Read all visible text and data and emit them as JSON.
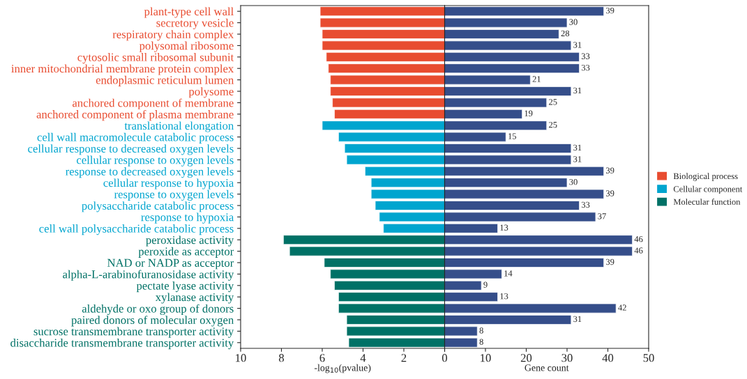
{
  "chart_data": [
    {
      "type": "bar",
      "orientation": "horizontal",
      "xlabel": "-log$_{10}$(pvalue)",
      "categories": [
        "plant-type cell wall",
        "secretory vesicle",
        "respiratory chain complex",
        "polysomal ribosome",
        "cytosolic small ribosomal subunit",
        "inner mitochondrial membrane protein complex",
        "endoplasmic reticulum lumen",
        "polysome",
        "anchored component of membrane",
        "anchored component of plasma membrane",
        "translational elongation",
        "cell wall macromolecule catabolic process",
        "cellular response to decreased oxygen levels",
        "cellular response to oxygen levels",
        "response to decreased oxygen levels",
        "cellular response to hypoxia",
        "response to oxygen levels",
        "polysaccharide catabolic process",
        "response to hypoxia",
        "cell wall polysaccharide catabolic process",
        "peroxidase activity",
        "peroxide as acceptor",
        "NAD or NADP as acceptor",
        "alpha-L-arabinofuranosidase activity",
        "pectate lyase activity",
        "xylanase activity",
        "aldehyde or oxo group of donors",
        "paired donors of molecular oxygen",
        "sucrose transmembrane transporter activity",
        "disaccharide transmembrane transporter activity"
      ],
      "series": [
        {
          "name": "Biological process",
          "color": "#e84c30",
          "values": [
            6.1,
            6.1,
            6.0,
            6.0,
            5.8,
            5.7,
            5.6,
            5.6,
            5.5,
            5.4,
            null,
            null,
            null,
            null,
            null,
            null,
            null,
            null,
            null,
            null,
            null,
            null,
            null,
            null,
            null,
            null,
            null,
            null,
            null,
            null
          ]
        },
        {
          "name": "Cellular component",
          "color": "#00a5cf",
          "values": [
            null,
            null,
            null,
            null,
            null,
            null,
            null,
            null,
            null,
            null,
            6.0,
            5.2,
            4.9,
            4.8,
            3.9,
            3.6,
            3.6,
            3.4,
            3.2,
            3.0,
            null,
            null,
            null,
            null,
            null,
            null,
            null,
            null,
            null,
            null
          ]
        },
        {
          "name": "Molecular function",
          "color": "#007166",
          "values": [
            null,
            null,
            null,
            null,
            null,
            null,
            null,
            null,
            null,
            null,
            null,
            null,
            null,
            null,
            null,
            null,
            null,
            null,
            null,
            null,
            7.9,
            7.6,
            5.9,
            5.6,
            5.4,
            5.2,
            5.2,
            4.8,
            4.8,
            4.7
          ]
        }
      ],
      "xlim": [
        10,
        0
      ],
      "xticks": [
        10,
        8,
        6,
        4,
        2,
        {
          "value": 0,
          "label": null
        }
      ],
      "legend": "right"
    },
    {
      "type": "bar",
      "orientation": "horizontal",
      "xlabel": "Gene count",
      "tick_labels": "x",
      "categories": [
        null,
        null,
        null,
        null,
        null,
        null,
        null,
        null,
        null,
        null,
        null,
        null,
        null,
        null,
        null,
        null,
        null,
        null,
        null,
        null,
        null,
        null,
        null,
        null,
        null,
        null,
        null,
        null,
        null,
        null
      ],
      "values": [
        39,
        30,
        28,
        31,
        33,
        33,
        21,
        31,
        25,
        19,
        25,
        15,
        31,
        31,
        39,
        30,
        39,
        33,
        37,
        13,
        46,
        46,
        39,
        14,
        9,
        13,
        42,
        31,
        8,
        8
      ],
      "color": "#354e8a",
      "data_labels": true,
      "xlim": [
        0,
        50
      ],
      "xticks": [
        0,
        10,
        20,
        30,
        40,
        50
      ]
    }
  ]
}
